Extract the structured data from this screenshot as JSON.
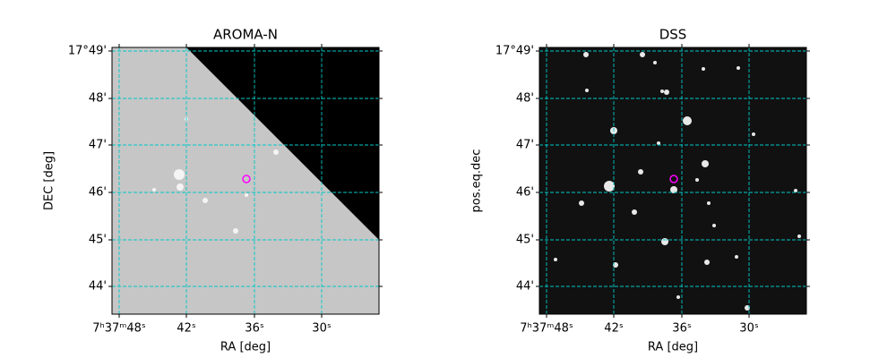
{
  "panels": [
    {
      "title": "AROMA-N",
      "xlabel": "RA [deg]",
      "ylabel": "DEC [deg]",
      "xticks": [
        "7ʰ37ᵐ48ˢ",
        "42ˢ",
        "36ˢ",
        "30ˢ"
      ],
      "yticks": [
        "17°49'",
        "48'",
        "47'",
        "46'",
        "45'",
        "44'"
      ]
    },
    {
      "title": "DSS",
      "xlabel": "RA [deg]",
      "ylabel": "pos.eq.dec",
      "xticks": [
        "7ʰ37ᵐ48ˢ",
        "42ˢ",
        "36ˢ",
        "30ˢ"
      ],
      "yticks": [
        "17°49'",
        "48'",
        "47'",
        "46'",
        "45'",
        "44'"
      ]
    }
  ]
}
